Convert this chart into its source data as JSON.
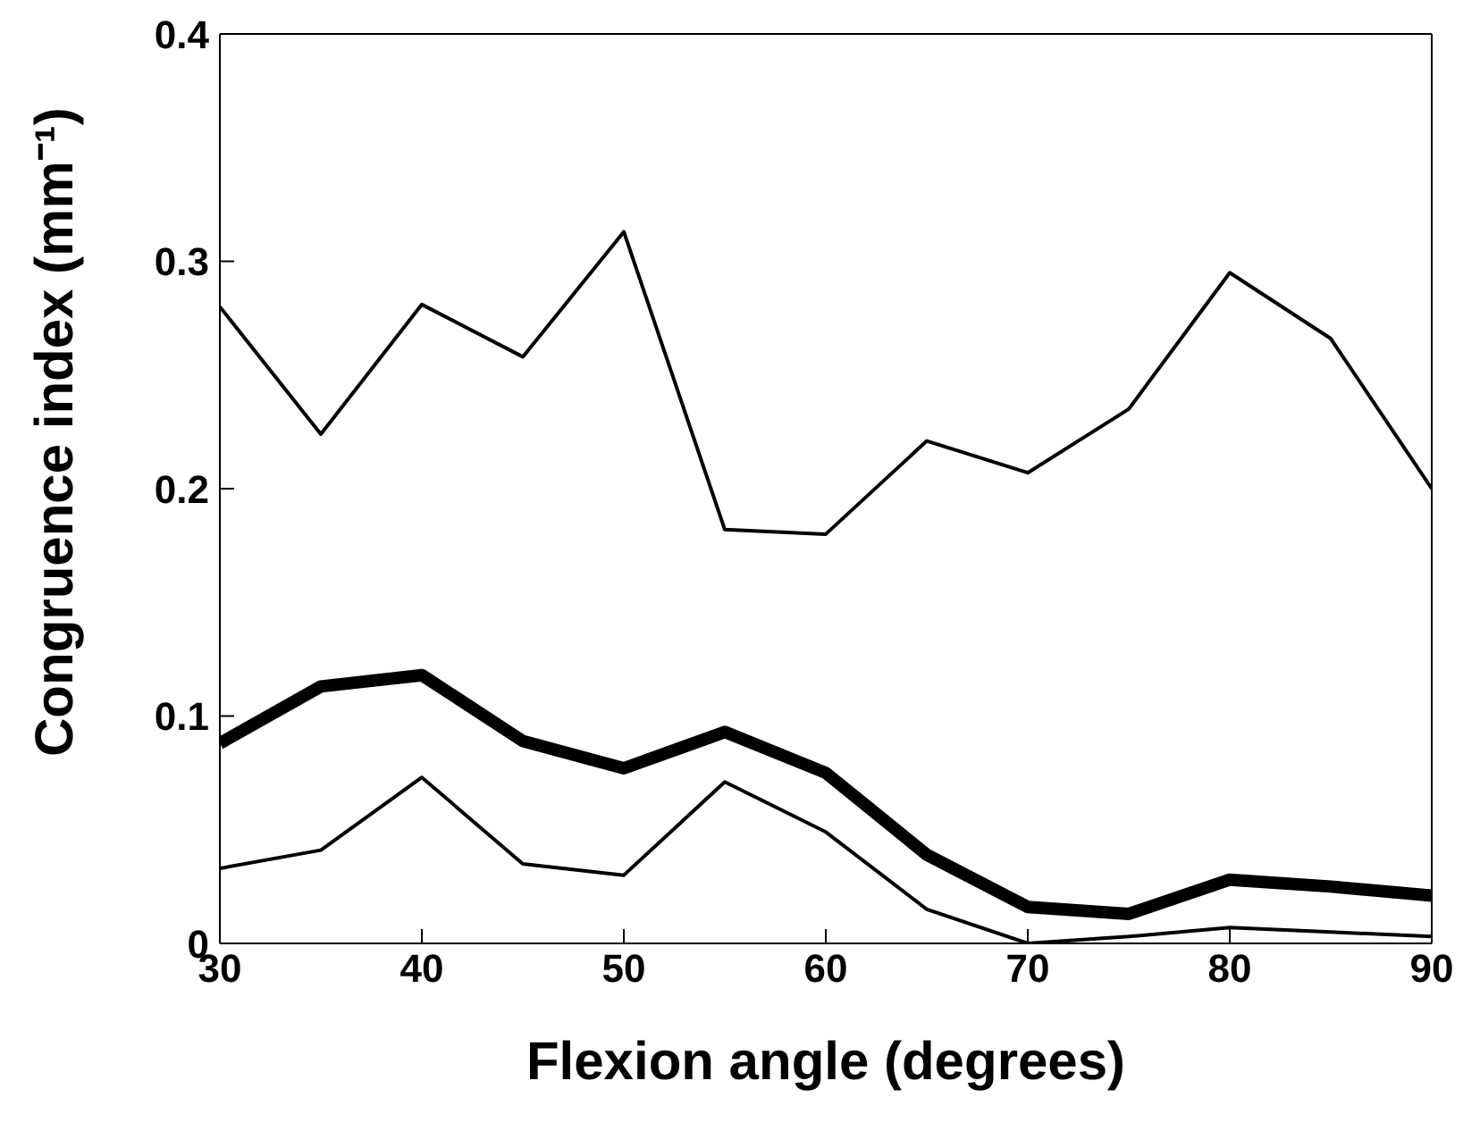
{
  "chart_data": {
    "type": "line",
    "xlabel": "Flexion angle (degrees)",
    "ylabel": "Congruence index (mm⁻¹)",
    "x": [
      30,
      35,
      40,
      45,
      50,
      55,
      60,
      65,
      70,
      75,
      80,
      85,
      90
    ],
    "series": [
      {
        "color": "#000000",
        "values": [
          0.28,
          0.224,
          0.281,
          0.258,
          0.313,
          0.182,
          0.18,
          0.221,
          0.207,
          0.235,
          0.295,
          0.266,
          0.2
        ]
      },
      {
        "color": "#000000",
        "values": [
          0.088,
          0.113,
          0.118,
          0.089,
          0.077,
          0.093,
          0.075,
          0.039,
          0.016,
          0.013,
          0.028,
          0.025,
          0.021
        ]
      },
      {
        "color": "#000000",
        "values": [
          0.033,
          0.041,
          0.073,
          0.035,
          0.03,
          0.071,
          0.049,
          0.015,
          0.0,
          0.003,
          0.007,
          0.005,
          0.003
        ]
      }
    ],
    "xlim": [
      30,
      90
    ],
    "xticks": [
      30,
      40,
      50,
      60,
      70,
      80,
      90
    ],
    "ylim": [
      0,
      0.4
    ],
    "yticks": [
      0,
      0.1,
      0.2,
      0.3,
      0.4
    ],
    "grid": false,
    "legend": false,
    "marker": "none",
    "line_style": "solid"
  }
}
